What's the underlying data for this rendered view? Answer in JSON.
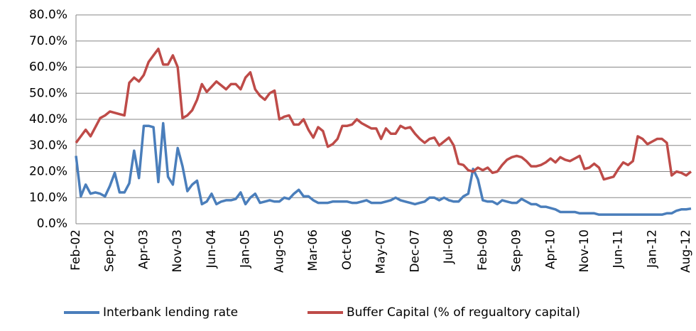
{
  "chart_data": {
    "type": "line",
    "categories": [
      "Feb-02",
      null,
      null,
      null,
      null,
      null,
      null,
      "Sep-02",
      null,
      null,
      null,
      null,
      null,
      null,
      "Apr-03",
      null,
      null,
      null,
      null,
      null,
      null,
      "Nov-03",
      null,
      null,
      null,
      null,
      null,
      null,
      "Jun-04",
      null,
      null,
      null,
      null,
      null,
      null,
      "Jan-05",
      null,
      null,
      null,
      null,
      null,
      null,
      "Aug-05",
      null,
      null,
      null,
      null,
      null,
      null,
      "Mar-06",
      null,
      null,
      null,
      null,
      null,
      null,
      "Oct-06",
      null,
      null,
      null,
      null,
      null,
      null,
      "May-07",
      null,
      null,
      null,
      null,
      null,
      null,
      "Dec-07",
      null,
      null,
      null,
      null,
      null,
      null,
      "Jul-08",
      null,
      null,
      null,
      null,
      null,
      null,
      "Feb-09",
      null,
      null,
      null,
      null,
      null,
      null,
      "Sep-09",
      null,
      null,
      null,
      null,
      null,
      null,
      "Apr-10",
      null,
      null,
      null,
      null,
      null,
      null,
      "Nov-10",
      null,
      null,
      null,
      null,
      null,
      null,
      "Jun-11",
      null,
      null,
      null,
      null,
      null,
      null,
      "Jan-12",
      null,
      null,
      null,
      null,
      null,
      null,
      "Aug-12",
      null
    ],
    "series": [
      {
        "name": "Interbank lending rate",
        "color": "#4a7ebb",
        "values": [
          26,
          10.5,
          15,
          11.5,
          12,
          11.5,
          10.5,
          14.5,
          19.5,
          12,
          12,
          15.5,
          28,
          17.5,
          37.5,
          37.5,
          37,
          16,
          38.5,
          18,
          15,
          29,
          22,
          12.5,
          15,
          16.5,
          7.5,
          8.5,
          11.5,
          7.5,
          8.5,
          9,
          9,
          9.5,
          12,
          7.5,
          10,
          11.5,
          8,
          8.5,
          9,
          8.5,
          8.5,
          10,
          9.5,
          11.5,
          13,
          10.5,
          10.5,
          9,
          8,
          8,
          8,
          8.5,
          8.5,
          8.5,
          8.5,
          8,
          8,
          8.5,
          9,
          8,
          8,
          8,
          8.5,
          9,
          10,
          9,
          8.5,
          8,
          7.5,
          8,
          8.5,
          10,
          10,
          9,
          10,
          9,
          8.5,
          8.5,
          10.5,
          11.5,
          21,
          17,
          9,
          8.5,
          8.5,
          7.5,
          9,
          8.5,
          8,
          8,
          9.5,
          8.5,
          7.5,
          7.5,
          6.5,
          6.5,
          6,
          5.5,
          4.5,
          4.5,
          4.5,
          4.5,
          4,
          4,
          4,
          4,
          3.5,
          3.5,
          3.5,
          3.5,
          3.5,
          3.5,
          3.5,
          3.5,
          3.5,
          3.5,
          3.5,
          3.5,
          3.5,
          3.5,
          4,
          4,
          5,
          5.5,
          5.5,
          5.8
        ]
      },
      {
        "name": "Buffer Capital (% of regualtory capital)",
        "color": "#be4b48",
        "values": [
          31,
          33.5,
          36,
          33.5,
          37,
          40.5,
          41.5,
          43,
          42.5,
          42,
          41.5,
          54,
          56,
          54.5,
          57,
          62,
          64.5,
          67,
          61,
          61,
          64.5,
          60,
          40.5,
          41.5,
          43.5,
          47.5,
          53.5,
          50.5,
          52.5,
          54.5,
          53,
          51.5,
          53.5,
          53.5,
          51.5,
          56,
          58,
          51.5,
          49,
          47.5,
          50,
          51,
          40,
          41,
          41.5,
          38,
          38,
          40,
          36,
          33,
          37,
          35.5,
          29.5,
          30.5,
          32.5,
          37.5,
          37.5,
          38,
          40,
          38.5,
          37.5,
          36.5,
          36.5,
          32.5,
          36.5,
          34.5,
          34.5,
          37.5,
          36.5,
          37,
          34.5,
          32.5,
          31,
          32.5,
          33,
          30,
          31.5,
          33,
          30,
          23,
          22.5,
          20.5,
          20,
          21.5,
          20.5,
          21.5,
          19.5,
          20,
          22.5,
          24.5,
          25.5,
          26,
          25.5,
          24,
          22,
          22,
          22.5,
          23.5,
          25,
          23.5,
          25.5,
          24.5,
          24,
          25,
          26,
          21,
          21.5,
          23,
          21.5,
          17,
          17.5,
          18,
          21,
          23.5,
          22.5,
          24,
          33.5,
          32.5,
          30.5,
          31.5,
          32.5,
          32.5,
          31,
          18.5,
          20,
          19.5,
          18.5,
          20
        ]
      }
    ],
    "ylim": [
      0,
      80
    ],
    "yticks": [
      {
        "value": 0,
        "label": "0.0%"
      },
      {
        "value": 10,
        "label": "10.0%"
      },
      {
        "value": 20,
        "label": "20.0%"
      },
      {
        "value": 30,
        "label": "30.0%"
      },
      {
        "value": 40,
        "label": "40.0%"
      },
      {
        "value": 50,
        "label": "50.0%"
      },
      {
        "value": 60,
        "label": "60.0%"
      },
      {
        "value": 70,
        "label": "70.0%"
      },
      {
        "value": 80,
        "label": "80.0%"
      }
    ],
    "grid": true,
    "legend": "bottom"
  }
}
